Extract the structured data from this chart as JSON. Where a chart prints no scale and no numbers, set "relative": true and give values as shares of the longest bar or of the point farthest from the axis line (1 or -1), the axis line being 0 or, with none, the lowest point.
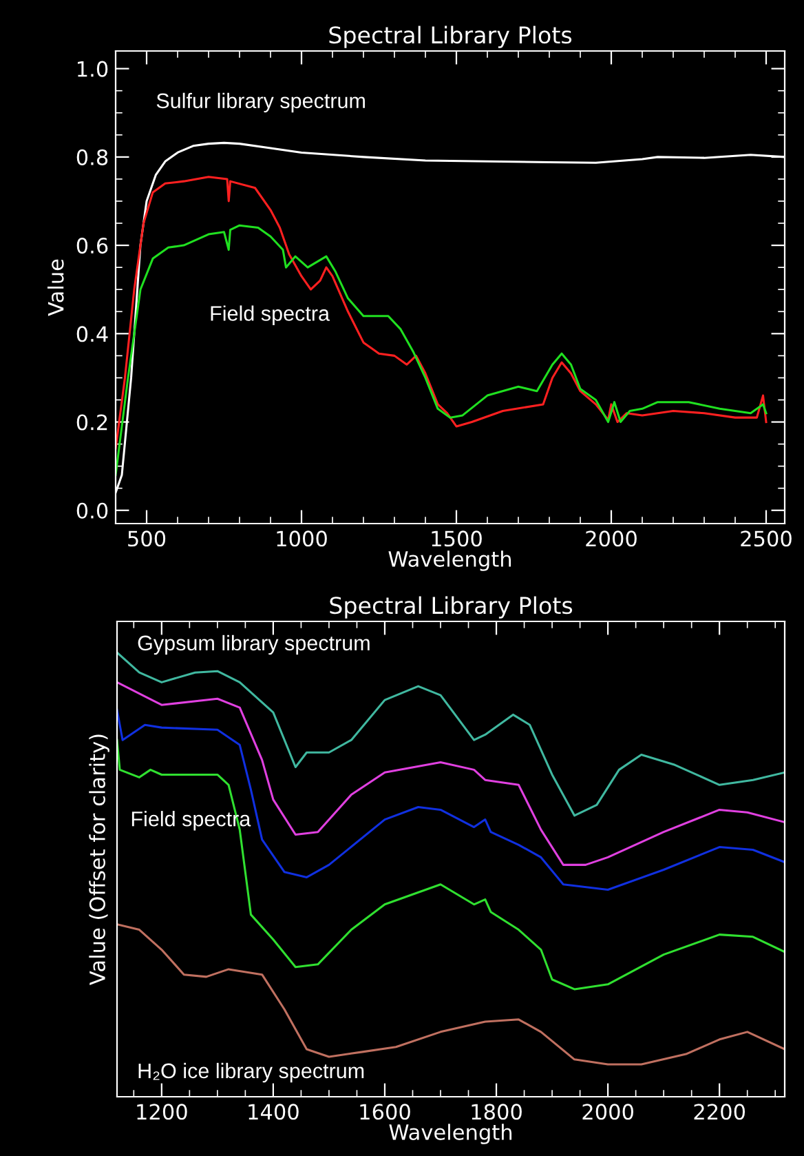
{
  "chart_data": [
    {
      "type": "line",
      "title": "Spectral Library Plots",
      "xlabel": "Wavelength",
      "ylabel": "Value",
      "xlim": [
        400,
        2560
      ],
      "xticks": [
        500,
        1000,
        1500,
        2000,
        2500
      ],
      "ylim": [
        -0.03,
        1.04
      ],
      "yticks": [
        {
          "value": 0,
          "label": "0.0"
        },
        0.2,
        0.4,
        0.6,
        0.8,
        {
          "value": 1,
          "label": "1.0"
        }
      ],
      "grid": false,
      "legend": false,
      "marker": "none",
      "line_style": "solid",
      "annotations": [
        "Field spectra"
      ],
      "series": [
        {
          "name": "Sulfur library spectrum",
          "color": "#ffffff",
          "x": [
            400,
            420,
            450,
            480,
            500,
            530,
            560,
            600,
            650,
            700,
            750,
            800,
            900,
            1000,
            1200,
            1400,
            1600,
            1800,
            1950,
            2100,
            2150,
            2300,
            2450,
            2560
          ],
          "values": [
            0.04,
            0.08,
            0.3,
            0.6,
            0.7,
            0.76,
            0.79,
            0.81,
            0.825,
            0.83,
            0.832,
            0.83,
            0.82,
            0.81,
            0.8,
            0.792,
            0.79,
            0.788,
            0.787,
            0.795,
            0.8,
            0.798,
            0.805,
            0.8
          ]
        },
        {
          "color": "#ff2020",
          "x": [
            400,
            430,
            460,
            490,
            520,
            560,
            620,
            700,
            760,
            765,
            770,
            850,
            900,
            930,
            960,
            1000,
            1030,
            1060,
            1080,
            1100,
            1150,
            1200,
            1250,
            1300,
            1340,
            1370,
            1400,
            1440,
            1470,
            1500,
            1550,
            1650,
            1780,
            1810,
            1840,
            1870,
            1900,
            1950,
            1990,
            2000,
            2020,
            2050,
            2100,
            2200,
            2300,
            2400,
            2470,
            2490,
            2500
          ],
          "values": [
            0.14,
            0.3,
            0.5,
            0.65,
            0.72,
            0.74,
            0.745,
            0.755,
            0.75,
            0.7,
            0.745,
            0.73,
            0.68,
            0.64,
            0.58,
            0.53,
            0.5,
            0.52,
            0.55,
            0.53,
            0.45,
            0.38,
            0.355,
            0.35,
            0.33,
            0.35,
            0.31,
            0.24,
            0.22,
            0.19,
            0.2,
            0.225,
            0.24,
            0.3,
            0.335,
            0.31,
            0.27,
            0.24,
            0.205,
            0.24,
            0.2,
            0.22,
            0.215,
            0.225,
            0.22,
            0.21,
            0.21,
            0.26,
            0.2
          ]
        },
        {
          "color": "#20e020",
          "x": [
            400,
            440,
            480,
            520,
            570,
            620,
            700,
            750,
            765,
            770,
            800,
            860,
            900,
            940,
            950,
            980,
            1020,
            1080,
            1110,
            1150,
            1200,
            1280,
            1320,
            1360,
            1400,
            1440,
            1480,
            1520,
            1600,
            1700,
            1760,
            1810,
            1840,
            1870,
            1900,
            1950,
            1990,
            2010,
            2030,
            2060,
            2100,
            2150,
            2250,
            2350,
            2450,
            2490,
            2500
          ],
          "values": [
            0.08,
            0.3,
            0.5,
            0.57,
            0.595,
            0.6,
            0.625,
            0.63,
            0.59,
            0.635,
            0.645,
            0.64,
            0.62,
            0.59,
            0.55,
            0.575,
            0.55,
            0.575,
            0.54,
            0.48,
            0.44,
            0.44,
            0.41,
            0.36,
            0.3,
            0.23,
            0.21,
            0.215,
            0.26,
            0.28,
            0.27,
            0.33,
            0.355,
            0.33,
            0.275,
            0.25,
            0.2,
            0.245,
            0.2,
            0.225,
            0.23,
            0.245,
            0.245,
            0.23,
            0.22,
            0.24,
            0.22
          ]
        }
      ]
    },
    {
      "type": "line",
      "title": "Spectral Library Plots",
      "xlabel": "Wavelength",
      "ylabel": "Value (Offset for clarity)",
      "xlim": [
        1120,
        2317
      ],
      "xticks": [
        1200,
        1400,
        1600,
        1800,
        2000,
        2200
      ],
      "relative": true,
      "tick_labels": "x",
      "grid": false,
      "legend": false,
      "marker": "none",
      "line_style": "solid",
      "annotations": [
        "Field spectra"
      ],
      "series": [
        {
          "name": "Gypsum library spectrum",
          "color": "#40b8a0",
          "x": [
            1120,
            1160,
            1200,
            1260,
            1300,
            1340,
            1400,
            1440,
            1460,
            1500,
            1540,
            1600,
            1660,
            1700,
            1760,
            1780,
            1830,
            1860,
            1900,
            1940,
            1980,
            2020,
            2060,
            2120,
            2200,
            2260,
            2317
          ],
          "values": [
            1.0,
            0.955,
            0.933,
            0.955,
            0.958,
            0.933,
            0.865,
            0.742,
            0.775,
            0.775,
            0.803,
            0.893,
            0.924,
            0.904,
            0.803,
            0.815,
            0.86,
            0.837,
            0.725,
            0.633,
            0.657,
            0.736,
            0.77,
            0.747,
            0.702,
            0.713,
            0.73
          ]
        },
        {
          "color": "#e040e0",
          "x": [
            1120,
            1200,
            1300,
            1340,
            1380,
            1400,
            1440,
            1480,
            1540,
            1600,
            1700,
            1760,
            1780,
            1840,
            1880,
            1920,
            1960,
            2000,
            2100,
            2200,
            2250,
            2317
          ],
          "values": [
            0.933,
            0.882,
            0.896,
            0.876,
            0.758,
            0.669,
            0.59,
            0.596,
            0.68,
            0.73,
            0.753,
            0.736,
            0.713,
            0.702,
            0.601,
            0.522,
            0.522,
            0.539,
            0.596,
            0.646,
            0.64,
            0.618
          ]
        },
        {
          "color": "#1030e0",
          "x": [
            1120,
            1130,
            1170,
            1200,
            1300,
            1340,
            1360,
            1380,
            1420,
            1460,
            1500,
            1600,
            1660,
            1700,
            1760,
            1780,
            1790,
            1840,
            1880,
            1920,
            2000,
            2100,
            2200,
            2260,
            2317
          ],
          "values": [
            0.871,
            0.803,
            0.837,
            0.831,
            0.826,
            0.792,
            0.691,
            0.579,
            0.506,
            0.494,
            0.522,
            0.624,
            0.652,
            0.646,
            0.607,
            0.624,
            0.596,
            0.567,
            0.539,
            0.478,
            0.466,
            0.511,
            0.562,
            0.556,
            0.528
          ]
        },
        {
          "color": "#30e030",
          "x": [
            1120,
            1125,
            1160,
            1180,
            1200,
            1300,
            1320,
            1340,
            1360,
            1400,
            1440,
            1480,
            1540,
            1600,
            1700,
            1760,
            1780,
            1790,
            1840,
            1880,
            1900,
            1940,
            2000,
            2100,
            2200,
            2260,
            2317
          ],
          "values": [
            0.803,
            0.736,
            0.719,
            0.736,
            0.725,
            0.725,
            0.702,
            0.601,
            0.41,
            0.354,
            0.292,
            0.298,
            0.376,
            0.433,
            0.478,
            0.433,
            0.444,
            0.416,
            0.376,
            0.331,
            0.264,
            0.242,
            0.253,
            0.32,
            0.365,
            0.36,
            0.326
          ]
        },
        {
          "name": "H₂O ice library spectrum",
          "color": "#c07060",
          "x": [
            1120,
            1160,
            1200,
            1240,
            1280,
            1320,
            1380,
            1420,
            1460,
            1500,
            1560,
            1620,
            1700,
            1780,
            1840,
            1880,
            1940,
            2000,
            2060,
            2140,
            2200,
            2250,
            2317
          ],
          "values": [
            0.388,
            0.376,
            0.331,
            0.275,
            0.27,
            0.287,
            0.275,
            0.197,
            0.107,
            0.09,
            0.101,
            0.112,
            0.146,
            0.169,
            0.174,
            0.146,
            0.084,
            0.073,
            0.073,
            0.096,
            0.129,
            0.146,
            0.107
          ]
        }
      ]
    }
  ]
}
